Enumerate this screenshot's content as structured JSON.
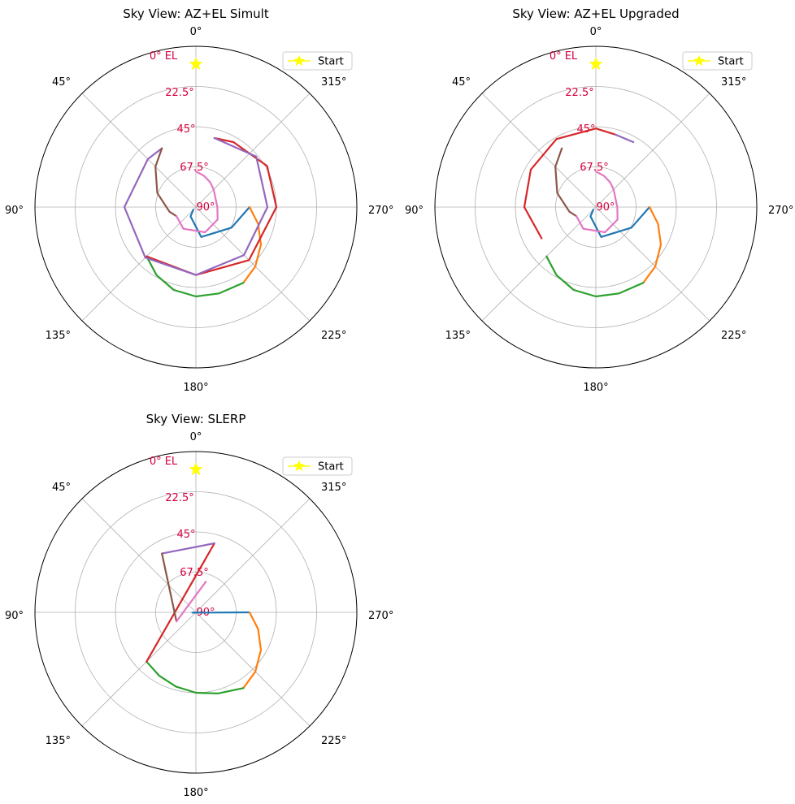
{
  "chart_data": [
    {
      "type": "polar-line",
      "title": "Sky View: AZ+EL Simult",
      "theta_zero": "N",
      "theta_direction": "counterclockwise",
      "theta_ticks": [
        "0°",
        "45°",
        "90°",
        "135°",
        "180°",
        "225°",
        "270°",
        "315°"
      ],
      "r_axis": "elevation",
      "r_tick_labels": [
        "0° EL",
        "22.5°",
        "45°",
        "67.5°",
        "90°"
      ],
      "r_ticks": [
        0,
        22.5,
        45,
        67.5,
        90
      ],
      "legend": {
        "position": "top-right",
        "entries": [
          "Start"
        ]
      },
      "start_marker": {
        "az": 0,
        "el": 10,
        "color": "#ffff00"
      },
      "series": [
        {
          "color": "#1f77b4",
          "points": [
            [
              135,
              88
            ],
            [
              150,
              84
            ],
            [
              190,
              73
            ],
            [
              240,
              67
            ],
            [
              270,
              60
            ]
          ]
        },
        {
          "color": "#ff7f0e",
          "points": [
            [
              270,
              60
            ],
            [
              255,
              54
            ],
            [
              240,
              48
            ],
            [
              225,
              43
            ],
            [
              212,
              40
            ]
          ]
        },
        {
          "color": "#2ca02c",
          "points": [
            [
              212,
              40
            ],
            [
              195,
              40
            ],
            [
              180,
              40
            ],
            [
              165,
              42
            ],
            [
              150,
              46
            ],
            [
              135,
              51
            ]
          ]
        },
        {
          "color": "#d62728",
          "points": [
            [
              135,
              51
            ],
            [
              180,
              52
            ],
            [
              225,
              48
            ],
            [
              270,
              45
            ],
            [
              300,
              44
            ],
            [
              330,
              48
            ],
            [
              345,
              50
            ]
          ]
        },
        {
          "color": "#9467bd",
          "points": [
            [
              345,
              50
            ],
            [
              310,
              46
            ],
            [
              270,
              50
            ],
            [
              225,
              52
            ],
            [
              180,
              52
            ],
            [
              135,
              50
            ],
            [
              90,
              50
            ],
            [
              45,
              52
            ],
            [
              30,
              52
            ]
          ]
        },
        {
          "color": "#8c564b",
          "points": [
            [
              30,
              52
            ],
            [
              45,
              58
            ],
            [
              70,
              67
            ],
            [
              100,
              75
            ],
            [
              115,
              78
            ]
          ]
        },
        {
          "color": "#e377c2",
          "points": [
            [
              115,
              78
            ],
            [
              150,
              76
            ],
            [
              200,
              75
            ],
            [
              240,
              76
            ],
            [
              270,
              78
            ],
            [
              315,
              76
            ],
            [
              330,
              74
            ],
            [
              345,
              72
            ],
            [
              0,
              70
            ]
          ]
        }
      ]
    },
    {
      "type": "polar-line",
      "title": "Sky View: AZ+EL Upgraded",
      "theta_zero": "N",
      "theta_direction": "counterclockwise",
      "theta_ticks": [
        "0°",
        "45°",
        "90°",
        "135°",
        "180°",
        "225°",
        "270°",
        "315°"
      ],
      "r_axis": "elevation",
      "r_tick_labels": [
        "0° EL",
        "22.5°",
        "45°",
        "67.5°",
        "90°"
      ],
      "r_ticks": [
        0,
        22.5,
        45,
        67.5,
        90
      ],
      "legend": {
        "position": "top-right",
        "entries": [
          "Start"
        ]
      },
      "start_marker": {
        "az": 0,
        "el": 10,
        "color": "#ffff00"
      },
      "series": [
        {
          "color": "#1f77b4",
          "points": [
            [
              135,
              88
            ],
            [
              150,
              84
            ],
            [
              190,
              73
            ],
            [
              240,
              67
            ],
            [
              270,
              60
            ]
          ]
        },
        {
          "color": "#ff7f0e",
          "points": [
            [
              270,
              60
            ],
            [
              255,
              54
            ],
            [
              240,
              48
            ],
            [
              225,
              43
            ],
            [
              212,
              40
            ]
          ]
        },
        {
          "color": "#2ca02c",
          "points": [
            [
              212,
              40
            ],
            [
              195,
              40
            ],
            [
              180,
              40
            ],
            [
              165,
              42
            ],
            [
              150,
              46
            ],
            [
              135,
              51
            ]
          ]
        },
        {
          "color": "#d62728",
          "points": [
            [
              120,
              55
            ],
            [
              90,
              50
            ],
            [
              60,
              48
            ],
            [
              30,
              46
            ],
            [
              0,
              46
            ],
            [
              345,
              48
            ]
          ]
        },
        {
          "color": "#9467bd",
          "points": [
            [
              345,
              48
            ],
            [
              330,
              48
            ]
          ]
        },
        {
          "color": "#8c564b",
          "points": [
            [
              30,
              52
            ],
            [
              45,
              58
            ],
            [
              70,
              67
            ],
            [
              100,
              75
            ],
            [
              115,
              78
            ]
          ]
        },
        {
          "color": "#e377c2",
          "points": [
            [
              115,
              78
            ],
            [
              150,
              76
            ],
            [
              200,
              75
            ],
            [
              240,
              76
            ],
            [
              270,
              78
            ],
            [
              315,
              76
            ],
            [
              330,
              74
            ],
            [
              345,
              72
            ],
            [
              0,
              70
            ]
          ]
        }
      ]
    },
    {
      "type": "polar-line",
      "title": "Sky View: SLERP",
      "theta_zero": "N",
      "theta_direction": "counterclockwise",
      "theta_ticks": [
        "0°",
        "45°",
        "90°",
        "135°",
        "180°",
        "225°",
        "270°",
        "315°"
      ],
      "r_axis": "elevation",
      "r_tick_labels": [
        "0° EL",
        "22.5°",
        "45°",
        "67.5°",
        "90°"
      ],
      "r_ticks": [
        0,
        22.5,
        45,
        67.5,
        90
      ],
      "legend": {
        "position": "top-right",
        "entries": [
          "Start"
        ]
      },
      "start_marker": {
        "az": 0,
        "el": 10,
        "color": "#ffff00"
      },
      "series": [
        {
          "color": "#1f77b4",
          "points": [
            [
              95,
              88
            ],
            [
              270,
              60
            ]
          ]
        },
        {
          "color": "#ff7f0e",
          "points": [
            [
              270,
              60
            ],
            [
              255,
              54
            ],
            [
              240,
              48
            ],
            [
              225,
              43
            ],
            [
              212,
              40
            ]
          ]
        },
        {
          "color": "#2ca02c",
          "points": [
            [
              212,
              40
            ],
            [
              195,
              43
            ],
            [
              180,
              45
            ],
            [
              165,
              47
            ],
            [
              150,
              49
            ],
            [
              135,
              51
            ]
          ]
        },
        {
          "color": "#d62728",
          "points": [
            [
              135,
              51
            ],
            [
              345,
              50
            ]
          ]
        },
        {
          "color": "#9467bd",
          "points": [
            [
              345,
              50
            ],
            [
              30,
              52
            ]
          ]
        },
        {
          "color": "#8c564b",
          "points": [
            [
              30,
              52
            ],
            [
              115,
              78
            ]
          ]
        },
        {
          "color": "#e377c2",
          "points": [
            [
              115,
              78
            ],
            [
              342,
              72
            ]
          ]
        }
      ]
    }
  ]
}
